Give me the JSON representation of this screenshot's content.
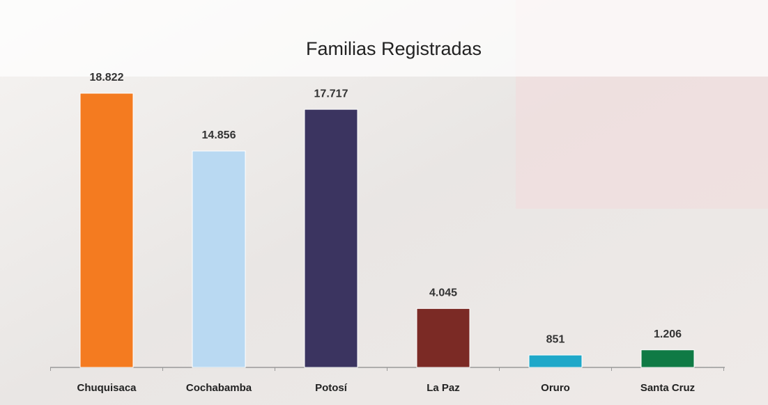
{
  "chart_data": {
    "type": "bar",
    "title": "Familias Registradas",
    "categories": [
      "Chuquisaca",
      "Cochabamba",
      "Potosí",
      "La Paz",
      "Oruro",
      "Santa Cruz"
    ],
    "values": [
      18822,
      14856,
      17717,
      4045,
      851,
      1206
    ],
    "value_labels": [
      "18.822",
      "14.856",
      "17.717",
      "4.045",
      "851",
      "1.206"
    ],
    "colors": [
      "#f47b20",
      "#b9d9f2",
      "#3b3460",
      "#7b2a25",
      "#1fa8c9",
      "#0f7a45"
    ]
  }
}
